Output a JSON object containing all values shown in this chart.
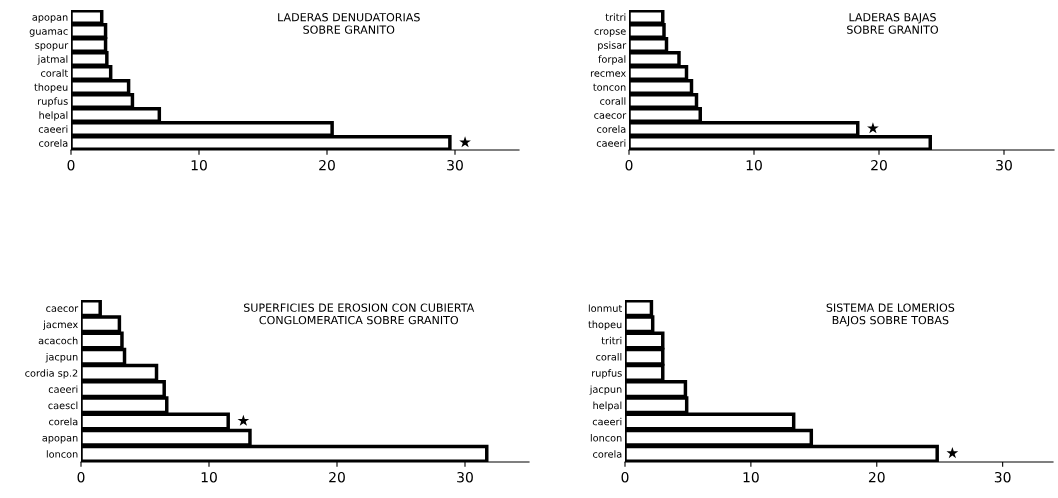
{
  "chart_data": [
    {
      "type": "bar",
      "orientation": "horizontal",
      "title": "LADERAS DENUDATORIAS\nSOBRE GRANITO",
      "categories": [
        "apopan",
        "guamac",
        "spopur",
        "jatmal",
        "coralt",
        "thopeu",
        "rupfus",
        "helpal",
        "caeeri",
        "corela"
      ],
      "values": [
        2.4,
        2.7,
        2.7,
        2.8,
        3.1,
        4.5,
        4.8,
        6.9,
        20.4,
        29.6
      ],
      "color": "#000000",
      "xlim": [
        0,
        35
      ],
      "xticks": [
        0,
        10,
        20,
        30
      ],
      "grid": false,
      "annotations": [
        {
          "text": "★",
          "x": 29.6,
          "y": "corela"
        }
      ]
    },
    {
      "type": "bar",
      "orientation": "horizontal",
      "title": "LADERAS BAJAS\nSOBRE GRANITO",
      "categories": [
        "tritri",
        "cropse",
        "psisar",
        "forpal",
        "recmex",
        "toncon",
        "corall",
        "caecor",
        "corela",
        "caeeri"
      ],
      "values": [
        2.7,
        2.8,
        3.0,
        4.0,
        4.6,
        5.0,
        5.4,
        5.7,
        18.3,
        24.1
      ],
      "color": "#000000",
      "xlim": [
        0,
        34
      ],
      "xticks": [
        0,
        10,
        20,
        30
      ],
      "grid": false,
      "annotations": [
        {
          "text": "★",
          "x": 18.3,
          "y": "corela"
        }
      ]
    },
    {
      "type": "bar",
      "orientation": "horizontal",
      "title": "SUPERFICIES DE EROSION CON CUBIERTA\nCONGLOMERATICA SOBRE GRANITO",
      "categories": [
        "caecor",
        "jacmex",
        "acacoch",
        "jacpun",
        "cordia sp.2",
        "caeeri",
        "caescl",
        "corela",
        "apopan",
        "loncon"
      ],
      "values": [
        1.5,
        3.0,
        3.2,
        3.4,
        5.9,
        6.5,
        6.7,
        11.5,
        13.2,
        31.7
      ],
      "color": "#000000",
      "xlim": [
        0,
        35
      ],
      "xticks": [
        0,
        10,
        20,
        30
      ],
      "grid": false,
      "annotations": [
        {
          "text": "★",
          "x": 11.5,
          "y": "corela"
        }
      ]
    },
    {
      "type": "bar",
      "orientation": "horizontal",
      "title": "SISTEMA DE LOMERIOS\nBAJOS SOBRE TOBAS",
      "categories": [
        "lonmut",
        "thopeu",
        "tritri",
        "corall",
        "rupfus",
        "jacpun",
        "helpal",
        "caeeri",
        "loncon",
        "corela"
      ],
      "values": [
        2.1,
        2.2,
        3.0,
        3.0,
        3.0,
        4.8,
        4.9,
        13.4,
        14.8,
        24.8
      ],
      "color": "#000000",
      "xlim": [
        0,
        34
      ],
      "xticks": [
        0,
        10,
        20,
        30
      ],
      "grid": false,
      "annotations": [
        {
          "text": "★",
          "x": 24.8,
          "y": "corela"
        }
      ]
    }
  ]
}
